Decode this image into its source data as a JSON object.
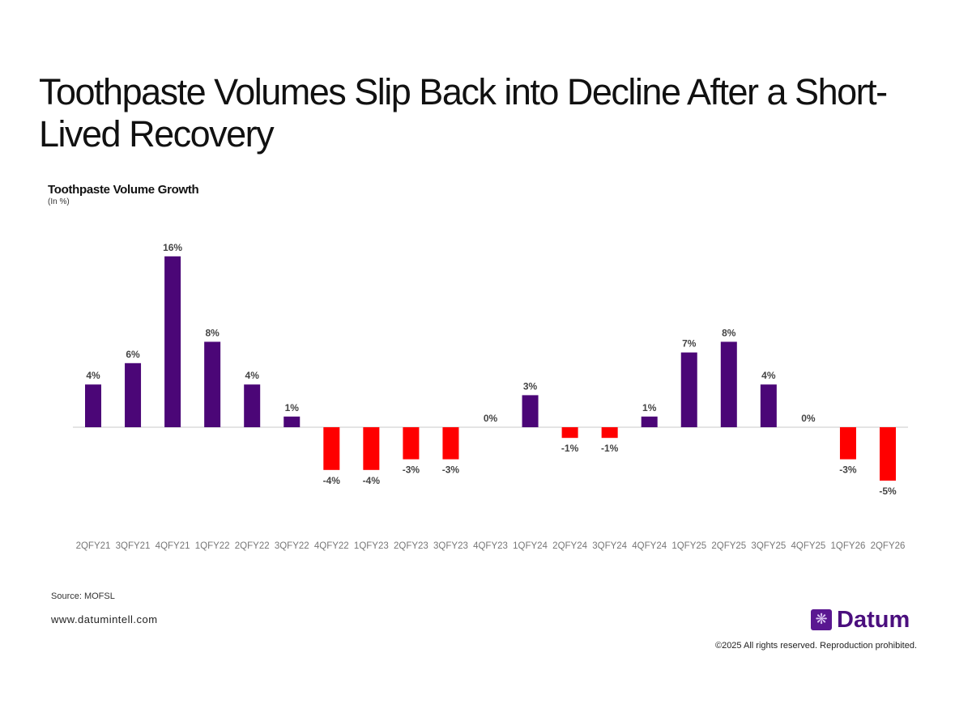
{
  "title": "Toothpaste Volumes Slip Back into Decline After a Short-Lived Recovery",
  "chart_data": {
    "type": "bar",
    "title": "Toothpaste Volume Growth",
    "subtitle": "(In %)",
    "categories": [
      "2QFY21",
      "3QFY21",
      "4QFY21",
      "1QFY22",
      "2QFY22",
      "3QFY22",
      "4QFY22",
      "1QFY23",
      "2QFY23",
      "3QFY23",
      "4QFY23",
      "1QFY24",
      "2QFY24",
      "3QFY24",
      "4QFY24",
      "1QFY25",
      "2QFY25",
      "3QFY25",
      "4QFY25",
      "1QFY26",
      "2QFY26"
    ],
    "values": [
      4,
      6,
      16,
      8,
      4,
      1,
      -4,
      -4,
      -3,
      -3,
      0,
      3,
      -1,
      -1,
      1,
      7,
      8,
      4,
      0,
      -3,
      -5
    ],
    "data_labels": [
      "4%",
      "6%",
      "16%",
      "8%",
      "4%",
      "1%",
      "-4%",
      "-4%",
      "-3%",
      "-3%",
      "0%",
      "3%",
      "-1%",
      "-1%",
      "1%",
      "7%",
      "8%",
      "4%",
      "0%",
      "-3%",
      "-5%"
    ],
    "colors": {
      "positive": "#4b0677",
      "negative": "#ff0000"
    },
    "grid": false,
    "legend": "none"
  },
  "source": "Source: MOFSL",
  "website": "www.datumintell.com",
  "logo_text": "Datum",
  "copyright": "©2025 All rights reserved. Reproduction prohibited."
}
